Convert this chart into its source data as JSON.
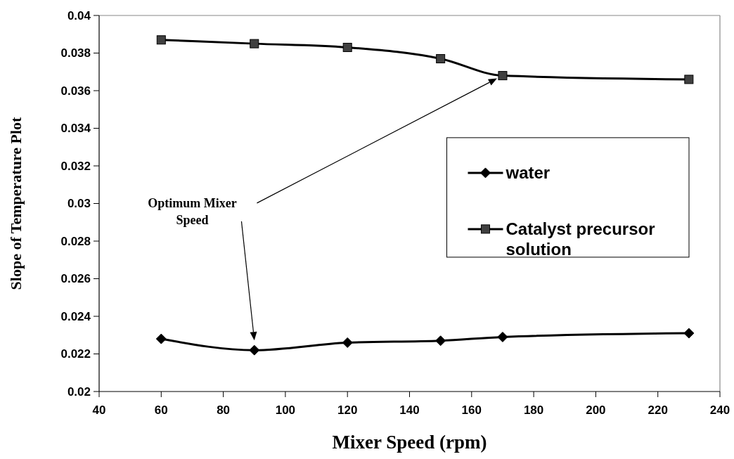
{
  "chart_data": {
    "type": "line",
    "xlabel": "Mixer Speed (rpm)",
    "ylabel": "Slope of Temperature Plot",
    "x": [
      60,
      90,
      120,
      150,
      170,
      230
    ],
    "series": [
      {
        "name": "water",
        "color": "#000000",
        "marker": "diamond",
        "values": [
          0.0228,
          0.0222,
          0.0226,
          0.0227,
          0.0229,
          0.0231
        ]
      },
      {
        "name": "Catalyst precursor solution",
        "color": "#404040",
        "marker": "square",
        "values": [
          0.0387,
          0.0385,
          0.0383,
          0.0377,
          0.0368,
          0.0366
        ]
      }
    ],
    "xlim": [
      40,
      240
    ],
    "xticks": [
      40,
      60,
      80,
      100,
      120,
      140,
      160,
      180,
      200,
      220,
      240
    ],
    "ylim": [
      0.02,
      0.04
    ],
    "yticks": [
      0.02,
      0.022,
      0.024,
      0.026,
      0.028,
      0.03,
      0.032,
      0.034,
      0.036,
      0.038,
      0.04
    ],
    "legend": "right",
    "grid": false,
    "annotations": [
      "Optimum Mixer Speed"
    ]
  }
}
